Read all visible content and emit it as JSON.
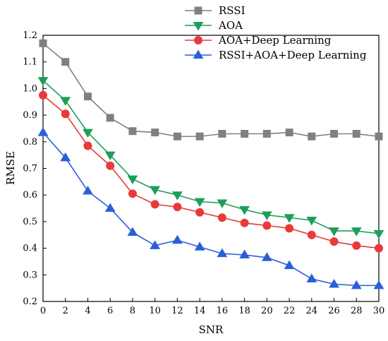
{
  "chart_data": {
    "type": "line",
    "title": "",
    "xlabel": "SNR",
    "ylabel": "RMSE",
    "xlim": [
      0,
      30
    ],
    "ylim": [
      0.2,
      1.2
    ],
    "x": [
      0,
      2,
      4,
      6,
      8,
      10,
      12,
      14,
      16,
      18,
      20,
      22,
      24,
      26,
      28,
      30
    ],
    "x_ticks": [
      "0",
      "2",
      "4",
      "6",
      "8",
      "10",
      "12",
      "14",
      "16",
      "18",
      "20",
      "22",
      "24",
      "26",
      "28",
      "30"
    ],
    "y_ticks": [
      "0.2",
      "0.3",
      "0.4",
      "0.5",
      "0.6",
      "0.7",
      "0.8",
      "0.9",
      "1.0",
      "1.1",
      "1.2"
    ],
    "grid": false,
    "legend_position": "top-right",
    "series": [
      {
        "name": "RSSI",
        "color": "#808080",
        "marker": "square",
        "values": [
          1.17,
          1.1,
          0.97,
          0.89,
          0.84,
          0.835,
          0.82,
          0.82,
          0.83,
          0.83,
          0.83,
          0.835,
          0.82,
          0.83,
          0.83,
          0.82
        ]
      },
      {
        "name": "AOA",
        "color": "#1f9e5a",
        "marker": "triangle-down",
        "values": [
          1.03,
          0.955,
          0.835,
          0.75,
          0.66,
          0.62,
          0.6,
          0.575,
          0.57,
          0.545,
          0.525,
          0.515,
          0.505,
          0.465,
          0.465,
          0.455
        ]
      },
      {
        "name": "AOA+Deep Learning",
        "color": "#e83a3a",
        "marker": "circle",
        "values": [
          0.975,
          0.905,
          0.785,
          0.71,
          0.605,
          0.565,
          0.555,
          0.535,
          0.515,
          0.495,
          0.485,
          0.475,
          0.45,
          0.425,
          0.41,
          0.4
        ]
      },
      {
        "name": "RSSI+AOA+Deep Learning",
        "color": "#2b5fd8",
        "marker": "triangle-up",
        "values": [
          0.835,
          0.74,
          0.615,
          0.55,
          0.46,
          0.41,
          0.43,
          0.405,
          0.38,
          0.375,
          0.365,
          0.335,
          0.285,
          0.265,
          0.26,
          0.26
        ]
      }
    ]
  }
}
